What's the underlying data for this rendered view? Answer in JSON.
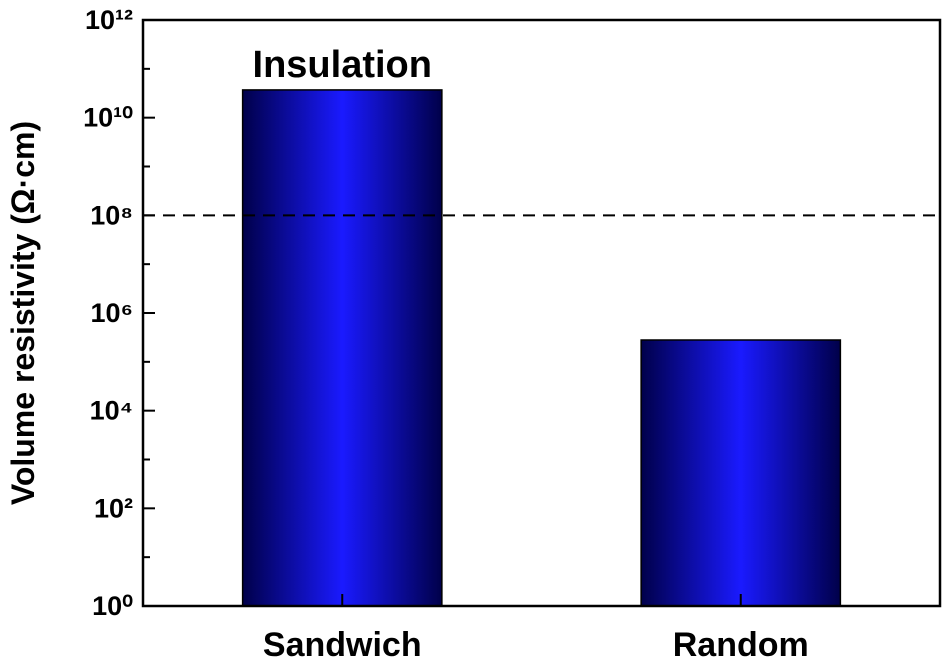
{
  "chart_data": {
    "type": "bar",
    "ylabel": "Volume resistivity (Ω·cm)",
    "categories": [
      "Sandwich",
      "Random"
    ],
    "values": [
      37000000000,
      280000
    ],
    "color": "#1a1aff",
    "edge_color": "#00004a",
    "ylim": [
      1,
      1000000000000
    ],
    "log_scale": true,
    "yticks": [
      {
        "value": 1,
        "label": "10⁰"
      },
      {
        "value": 100,
        "label": "10²"
      },
      {
        "value": 10000,
        "label": "10⁴"
      },
      {
        "value": 1000000,
        "label": "10⁶"
      },
      {
        "value": 100000000,
        "label": "10⁸"
      },
      {
        "value": 10000000000,
        "label": "10¹⁰"
      },
      {
        "value": 1000000000000,
        "label": "10¹²"
      }
    ],
    "yminorticks": [
      10,
      1000,
      100000,
      10000000,
      1000000000,
      100000000000
    ],
    "threshold": 100000000,
    "annotation": "Insulation"
  }
}
